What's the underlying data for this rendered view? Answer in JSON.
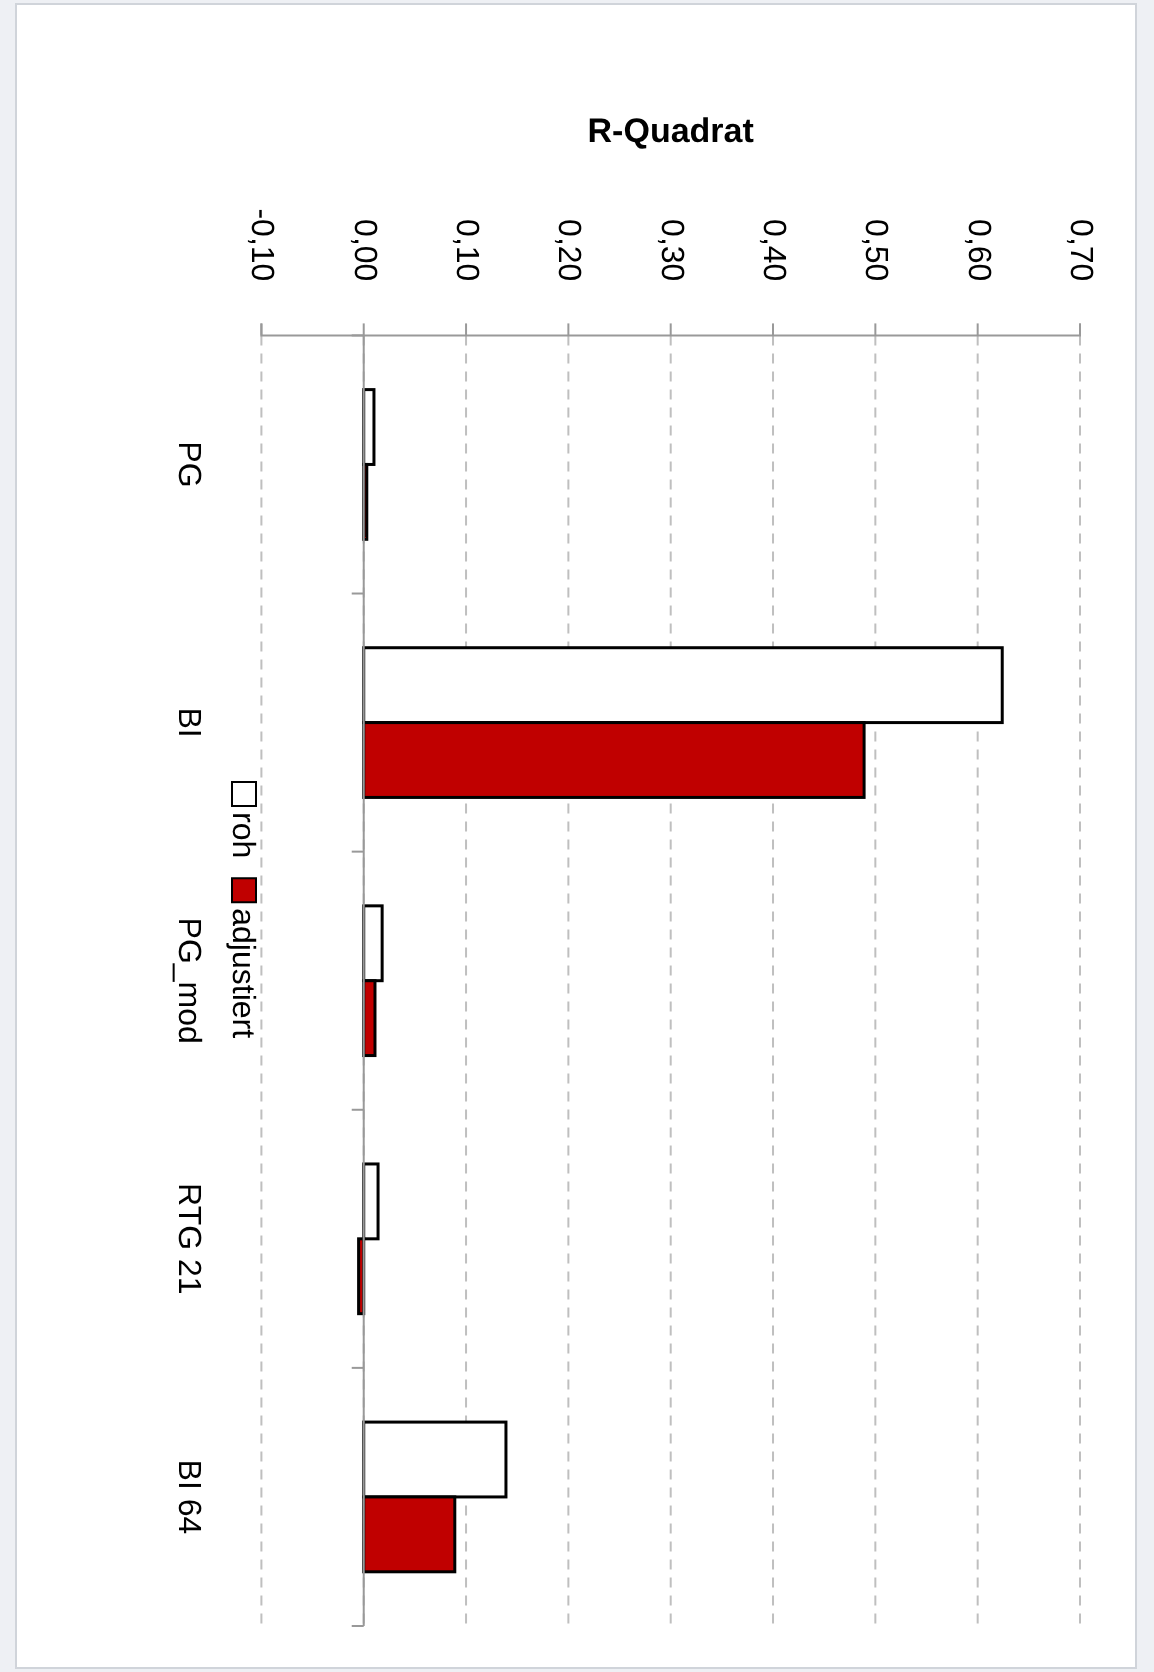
{
  "chart_data": {
    "type": "bar",
    "orientation": "horizontal",
    "xlabel": "R-Quadrat",
    "categories": [
      "PG",
      "BI",
      "PG_mod",
      "RTG 21",
      "BI 64"
    ],
    "series": [
      {
        "name": "roh",
        "color": "#ffffff",
        "values": [
          0.01,
          0.624,
          0.018,
          0.014,
          0.139
        ]
      },
      {
        "name": "adjustiert",
        "color": "#c00000",
        "values": [
          0.003,
          0.489,
          0.011,
          -0.005,
          0.089
        ]
      }
    ],
    "xlim": [
      -0.1,
      0.7
    ],
    "xticks": [
      {
        "value": -0.1,
        "label": "-0,10"
      },
      {
        "value": 0,
        "label": "0,00"
      },
      {
        "value": 0.1,
        "label": "0,10"
      },
      {
        "value": 0.2,
        "label": "0,20"
      },
      {
        "value": 0.3,
        "label": "0,30"
      },
      {
        "value": 0.4,
        "label": "0,40"
      },
      {
        "value": 0.5,
        "label": "0,50"
      },
      {
        "value": 0.6,
        "label": "0,60"
      },
      {
        "value": 0.7,
        "label": "0,70"
      }
    ],
    "grid": "x",
    "legend": "left"
  }
}
